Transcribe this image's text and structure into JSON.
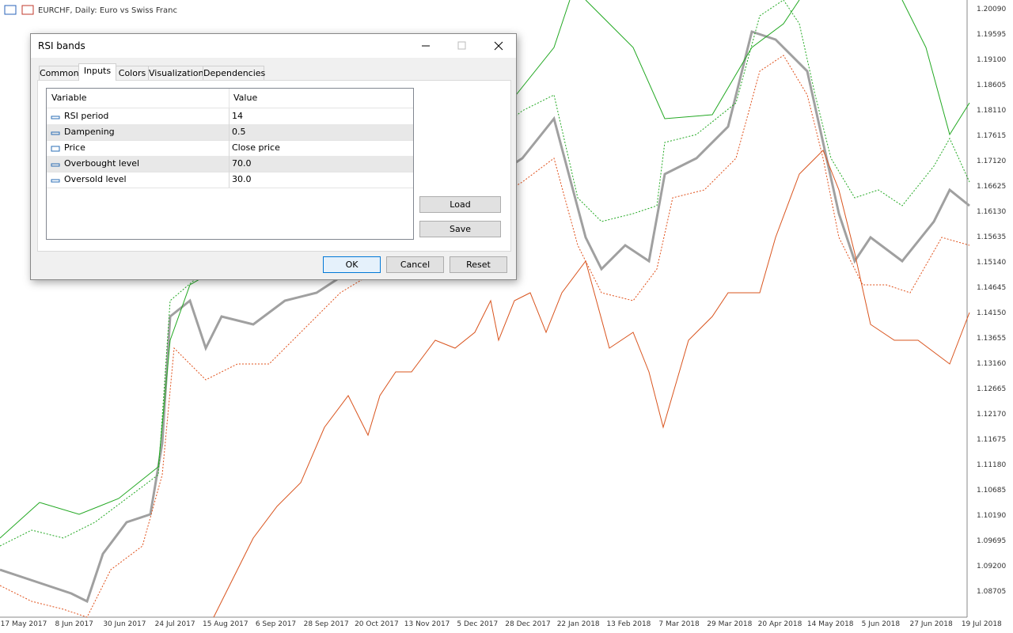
{
  "window": {
    "title": "EURCHF, Daily:  Euro vs Swiss Franc"
  },
  "price_axis": [
    "1.20090",
    "1.19595",
    "1.19100",
    "1.18605",
    "1.18110",
    "1.17615",
    "1.17120",
    "1.16625",
    "1.16130",
    "1.15635",
    "1.15140",
    "1.14645",
    "1.14150",
    "1.13655",
    "1.13160",
    "1.12665",
    "1.12170",
    "1.11675",
    "1.11180",
    "1.10685",
    "1.10190",
    "1.09695",
    "1.09200",
    "1.08705"
  ],
  "date_axis": [
    "17 May 2017",
    "8 Jun 2017",
    "30 Jun 2017",
    "24 Jul 2017",
    "15 Aug 2017",
    "6 Sep 2017",
    "28 Sep 2017",
    "20 Oct 2017",
    "13 Nov 2017",
    "5 Dec 2017",
    "28 Dec 2017",
    "22 Jan 2018",
    "13 Feb 2018",
    "7 Mar 2018",
    "29 Mar 2018",
    "20 Apr 2018",
    "14 May 2018",
    "5 Jun 2018",
    "27 Jun 2018",
    "19 Jul 2018"
  ],
  "dialog": {
    "title": "RSI bands",
    "tabs": [
      "Common",
      "Inputs",
      "Colors",
      "Visualization",
      "Dependencies"
    ],
    "table": {
      "headers": [
        "Variable",
        "Value"
      ],
      "rows": [
        [
          "RSI period",
          "14"
        ],
        [
          "Dampening",
          "0.5"
        ],
        [
          "Price",
          "Close price"
        ],
        [
          "Overbought level",
          "70.0"
        ],
        [
          "Oversold level",
          "30.0"
        ]
      ]
    },
    "side_buttons": [
      "Load",
      "Save"
    ],
    "footer_buttons": [
      "OK",
      "Cancel",
      "Reset"
    ]
  }
}
